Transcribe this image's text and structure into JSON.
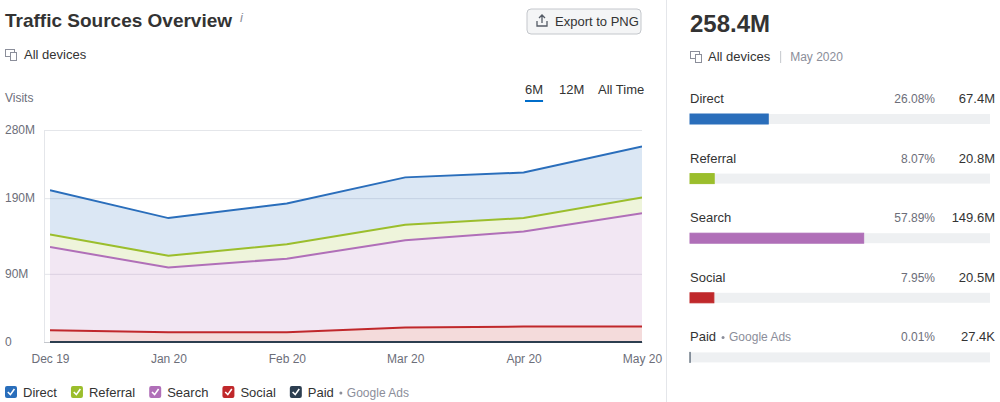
{
  "header": {
    "title": "Traffic Sources Overview",
    "info": "i",
    "export": "Export to PNG",
    "devices": "All devices",
    "ranges": [
      "6M",
      "12M",
      "All Time"
    ],
    "active_range": "6M"
  },
  "chart_data": {
    "type": "area",
    "stacked": true,
    "y_label": "Visits",
    "categories": [
      "Dec 19",
      "Jan 20",
      "Feb 20",
      "Mar 20",
      "Apr 20",
      "May 20"
    ],
    "series": [
      {
        "name": "Direct",
        "color": "#2a6ebb",
        "values": [
          58.5,
          49.8,
          53.8,
          62.7,
          60.1,
          67.4
        ]
      },
      {
        "name": "Referral",
        "color": "#9bbe2c",
        "values": [
          16.5,
          15.4,
          19.1,
          20.4,
          17.9,
          20.8
        ]
      },
      {
        "name": "Search",
        "color": "#b06fb8",
        "values": [
          110.0,
          85.6,
          97.2,
          115.1,
          125.4,
          149.6
        ]
      },
      {
        "name": "Social",
        "color": "#c0282b",
        "values": [
          15.4,
          12.8,
          12.8,
          19.2,
          20.4,
          20.5
        ]
      },
      {
        "name": "Paid",
        "source": "Google Ads",
        "color": "#2c3e50",
        "values": [
          0.03,
          0.03,
          0.03,
          0.03,
          0.03,
          0.0274
        ]
      }
    ],
    "ylim": [
      0,
      280
    ],
    "yticks": [
      0,
      {
        "value": 90,
        "label": "90M"
      },
      {
        "value": 190,
        "label": "190M"
      },
      {
        "value": 280,
        "label": "280M"
      }
    ],
    "grid": true,
    "legend": "bottom"
  },
  "summary": {
    "total_label": "258.4M",
    "devices": "All devices",
    "period": "May 2020",
    "xlim": [
      0,
      100
    ],
    "rows": [
      {
        "name": "Direct",
        "share": 26.08,
        "share_label": "26.08%",
        "visits_label": "67.4M"
      },
      {
        "name": "Referral",
        "share": 8.07,
        "share_label": "8.07%",
        "visits_label": "20.8M"
      },
      {
        "name": "Search",
        "share": 57.89,
        "share_label": "57.89%",
        "visits_label": "149.6M"
      },
      {
        "name": "Social",
        "share": 7.95,
        "share_label": "7.95%",
        "visits_label": "20.5M"
      },
      {
        "name": "Paid",
        "source": "Google Ads",
        "share": 0.01,
        "share_label": "0.01%",
        "visits_label": "27.4K"
      }
    ]
  }
}
